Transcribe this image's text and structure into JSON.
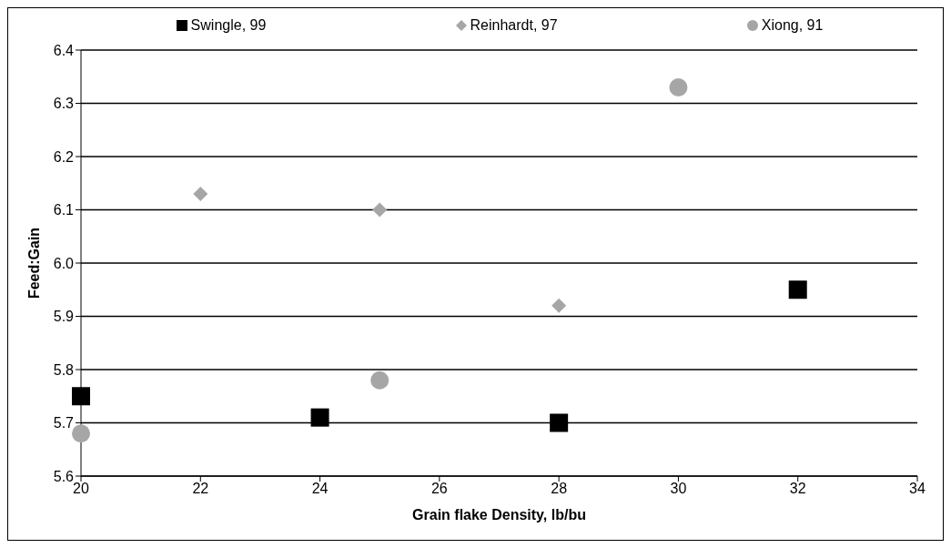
{
  "chart_data": {
    "type": "scatter",
    "xlabel": "Grain flake Density, lb/bu",
    "ylabel": "Feed:Gain",
    "xlim": [
      20,
      34
    ],
    "xticks": [
      20,
      22,
      24,
      26,
      28,
      30,
      32,
      34
    ],
    "ylim": [
      5.6,
      6.4
    ],
    "yticks": [
      {
        "value": 5.6,
        "label": "5.6"
      },
      {
        "value": 5.7,
        "label": "5.7"
      },
      {
        "value": 5.8,
        "label": "5.8"
      },
      {
        "value": 5.9,
        "label": "5.9"
      },
      {
        "value": 6.0,
        "label": "6.0"
      },
      {
        "value": 6.1,
        "label": "6.1"
      },
      {
        "value": 6.2,
        "label": "6.2"
      },
      {
        "value": 6.3,
        "label": "6.3"
      },
      {
        "value": 6.4,
        "label": "6.4"
      }
    ],
    "grid": "y",
    "legend": "top",
    "series": [
      {
        "name": "Swingle, 99",
        "color": "#000000",
        "marker": "square",
        "x": [
          20,
          24,
          28,
          32
        ],
        "values": [
          5.75,
          5.71,
          5.7,
          5.95
        ]
      },
      {
        "name": "Reinhardt, 97",
        "color": "#a6a6a6",
        "marker": "diamond",
        "x": [
          22,
          25,
          28
        ],
        "values": [
          6.13,
          6.1,
          5.92
        ]
      },
      {
        "name": "Xiong, 91",
        "color": "#a6a6a6",
        "marker": "circle",
        "x": [
          20,
          25,
          30
        ],
        "values": [
          5.68,
          5.78,
          6.33
        ]
      }
    ]
  }
}
